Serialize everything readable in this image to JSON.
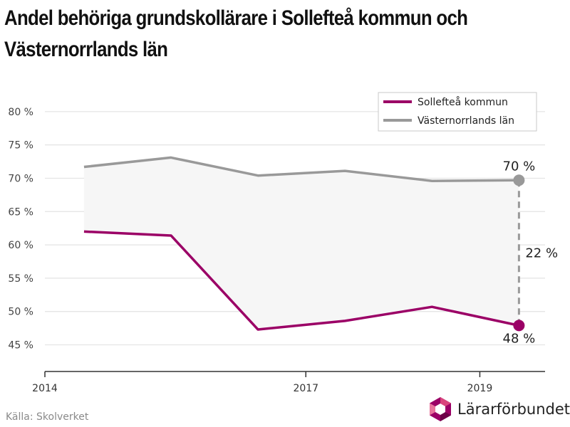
{
  "title": "Andel behöriga grundskollärare i Sollefteå kommun och Västernorrlands län",
  "source": "Källa: Skolverket",
  "brand": "Lärarförbundet",
  "colors": {
    "solleftea": "#9b0066",
    "vasternorrland": "#999999",
    "band": "#f6f6f6",
    "grid": "#e3e3e3",
    "axis": "#333333"
  },
  "chart_data": {
    "type": "line",
    "title": "Andel behöriga grundskollärare i Sollefteå kommun och Västernorrlands län",
    "xlabel": "",
    "ylabel": "",
    "x": [
      2014.45,
      2015.45,
      2016.45,
      2017.45,
      2018.45,
      2019.45
    ],
    "xlim": [
      2014,
      2019.75
    ],
    "xticks": [
      2014,
      2017,
      2019
    ],
    "ylim": [
      41,
      85
    ],
    "yticks": [
      45,
      50,
      55,
      60,
      65,
      70,
      75,
      80
    ],
    "ytick_labels": [
      "45 %",
      "50 %",
      "55 %",
      "60 %",
      "65 %",
      "70 %",
      "75 %",
      "80 %"
    ],
    "grid": true,
    "legend": "top-right",
    "series": [
      {
        "name": "Sollefteå kommun",
        "values": [
          62.0,
          61.4,
          47.3,
          48.6,
          50.7,
          47.9
        ],
        "color": "#9b0066"
      },
      {
        "name": "Västernorrlands län",
        "values": [
          71.7,
          73.1,
          70.4,
          71.1,
          69.6,
          69.7
        ],
        "color": "#999999"
      }
    ],
    "annotations": {
      "vasternorrland_end": "70 %",
      "solleftea_end": "48 %",
      "gap": "22 %"
    }
  }
}
